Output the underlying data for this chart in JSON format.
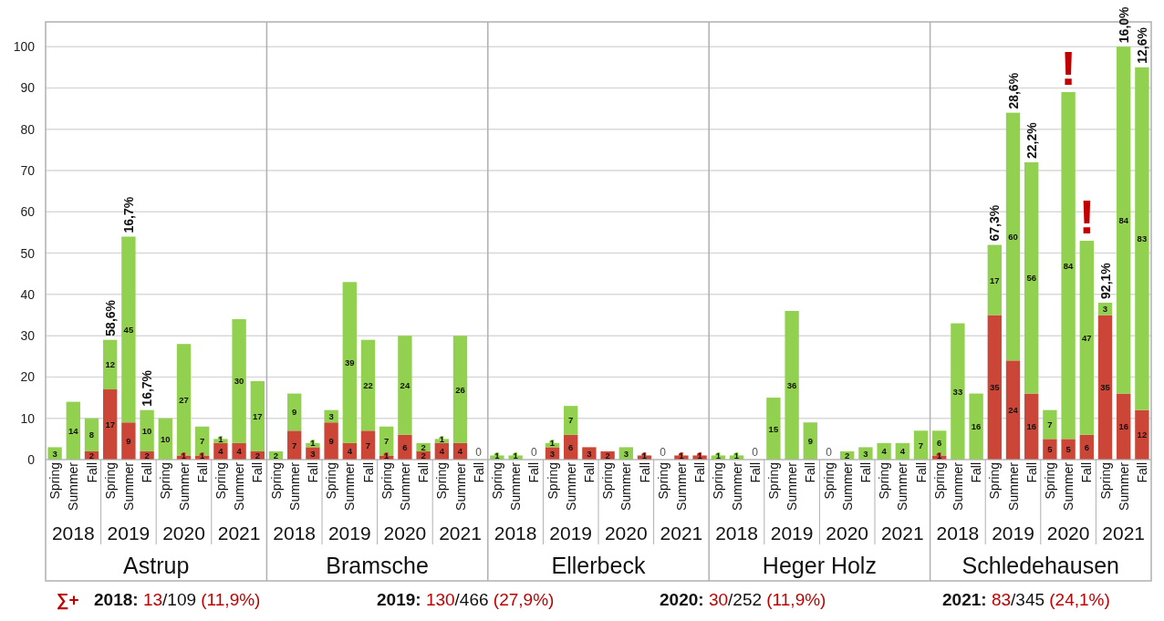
{
  "chart_data": {
    "type": "bar",
    "stacked": true,
    "categories": [
      "Spring",
      "Summer",
      "Fall",
      "Spring",
      "Summer",
      "Fall",
      "Spring",
      "Summer",
      "Fall",
      "Spring",
      "Summer",
      "Fall",
      "Spring",
      "Summer",
      "Fall",
      "Spring",
      "Summer",
      "Fall",
      "Spring",
      "Summer",
      "Fall",
      "Spring",
      "Summer",
      "Fall",
      "Spring",
      "Summer",
      "Fall",
      "Spring",
      "Summer",
      "Fall",
      "Spring",
      "Summer",
      "Fall",
      "Spring",
      "Summer",
      "Fall",
      "Spring",
      "Summer",
      "Fall",
      "Spring",
      "Summer",
      "Fall",
      "Spring",
      "Summer",
      "Fall",
      "Spring",
      "Summer",
      "Fall",
      "Spring",
      "Summer",
      "Fall",
      "Spring",
      "Summer",
      "Fall",
      "Spring",
      "Summer",
      "Fall",
      "Spring",
      "Summer",
      "Fall"
    ],
    "series": [
      {
        "color": "#cc4637",
        "values": [
          0,
          0,
          2,
          17,
          9,
          2,
          0,
          1,
          1,
          4,
          4,
          2,
          0,
          7,
          3,
          9,
          4,
          7,
          1,
          6,
          2,
          4,
          4,
          0,
          0,
          0,
          0,
          3,
          6,
          3,
          2,
          0,
          1,
          0,
          1,
          1,
          0,
          0,
          0,
          0,
          0,
          0,
          0,
          0,
          0,
          0,
          0,
          0,
          1,
          0,
          0,
          35,
          24,
          16,
          5,
          5,
          6,
          35,
          16,
          12
        ],
        "value_labels": [
          null,
          null,
          "2",
          "17",
          "9",
          "2",
          null,
          "1",
          "1",
          "4",
          "4",
          "2",
          null,
          "7",
          "3",
          "9",
          "4",
          "7",
          "1",
          "6",
          "2",
          "4",
          "4",
          null,
          null,
          null,
          null,
          "3",
          "6",
          "3",
          "2",
          null,
          "1",
          null,
          "1",
          "1",
          null,
          null,
          null,
          null,
          null,
          null,
          null,
          null,
          null,
          null,
          null,
          null,
          "1",
          null,
          null,
          "35",
          "24",
          "16",
          "5",
          "5",
          "6",
          "35",
          "16",
          "12"
        ]
      },
      {
        "color": "#92d050",
        "values": [
          3,
          14,
          8,
          12,
          45,
          10,
          10,
          27,
          7,
          1,
          30,
          17,
          2,
          9,
          1,
          3,
          39,
          22,
          7,
          24,
          2,
          1,
          26,
          0,
          1,
          1,
          0,
          1,
          7,
          0,
          0,
          3,
          0,
          0,
          0,
          0,
          1,
          1,
          0,
          15,
          36,
          9,
          0,
          2,
          3,
          4,
          4,
          7,
          6,
          33,
          16,
          17,
          60,
          56,
          7,
          84,
          47,
          3,
          84,
          83
        ],
        "value_labels": [
          "3",
          "14",
          "8",
          "12",
          "45",
          "10",
          "10",
          "27",
          "7",
          "1",
          "30",
          "17",
          "2",
          "9",
          "1",
          "3",
          "39",
          "22",
          "7",
          "24",
          "2",
          "1",
          "26",
          "0",
          "1",
          "1",
          "0",
          "1",
          "7",
          null,
          null,
          "3",
          null,
          "0",
          null,
          null,
          "1",
          "1",
          "0",
          "15",
          "36",
          "9",
          "0",
          "2",
          "3",
          "4",
          "4",
          "7",
          "6",
          "33",
          "16",
          "17",
          "60",
          "56",
          "7",
          "84",
          "47",
          "3",
          "84",
          "83"
        ]
      }
    ],
    "ylim": [
      0,
      106
    ],
    "yticks": [
      0,
      10,
      20,
      30,
      40,
      50,
      60,
      70,
      80,
      90,
      100
    ],
    "grid": "y",
    "annotations": [
      "2018",
      "2019",
      "2020",
      "2021",
      "2018",
      "2019",
      "2020",
      "2021",
      "2018",
      "2019",
      "2020",
      "2021",
      "2018",
      "2019",
      "2020",
      "2021",
      "2018",
      "2019",
      "2020",
      "2021",
      "Astrup",
      "Bramsche",
      "Ellerbeck",
      "Heger Holz",
      "Schledehausen",
      "∑+",
      "2018: 13/109 (11,9%)",
      "2019: 130/466 (27,9%)",
      "2020: 30/252 (11,9%)",
      "2021: 83/345 (24,1%)",
      {
        "text": "58,6%",
        "y": 29
      },
      {
        "text": "16,7%",
        "y": 54
      },
      {
        "text": "16,7%",
        "y": 12
      },
      {
        "text": "67,3%",
        "y": 52
      },
      {
        "text": "28,6%",
        "y": 84
      },
      {
        "text": "22,2%",
        "y": 72
      },
      {
        "text": "!",
        "y": 89
      },
      {
        "text": "!",
        "y": 53
      },
      {
        "text": "92,1%",
        "y": 38
      },
      {
        "text": "16,0%",
        "y": 100
      },
      {
        "text": "12,6%",
        "y": 95
      }
    ]
  }
}
